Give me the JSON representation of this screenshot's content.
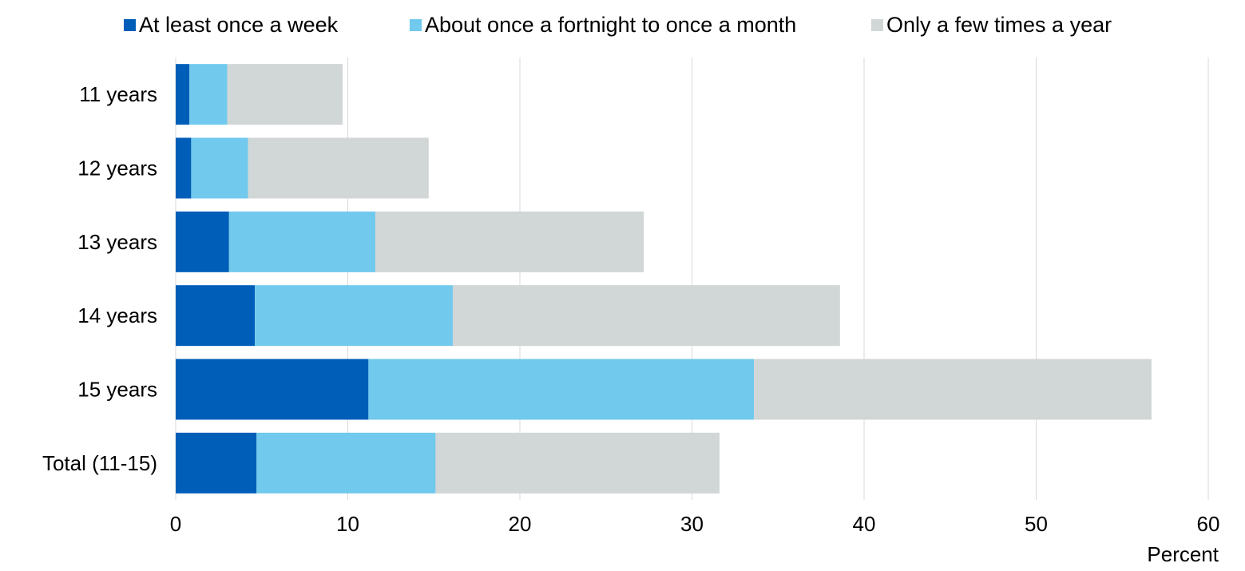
{
  "chart_data": {
    "type": "bar",
    "orientation": "horizontal",
    "stacked": true,
    "categories": [
      "11 years",
      "12 years",
      "13 years",
      "14 years",
      "15 years",
      "Total (11-15)"
    ],
    "series": [
      {
        "name": "At least once a week",
        "color": "#005EB8",
        "values": [
          0.8,
          0.9,
          3.1,
          4.6,
          11.2,
          4.7
        ]
      },
      {
        "name": "About once a fortnight to once a month",
        "color": "#71C9EE",
        "values": [
          2.2,
          3.3,
          8.5,
          11.5,
          22.4,
          10.4
        ]
      },
      {
        "name": "Only a few times a year",
        "color": "#D1D6D6",
        "values": [
          6.7,
          10.5,
          15.6,
          22.5,
          23.1,
          16.5
        ]
      }
    ],
    "xlim": [
      0,
      60
    ],
    "xticks": [
      "0",
      "10",
      "20",
      "30",
      "40",
      "50",
      "60"
    ],
    "xlabel": "Percent",
    "ylabel": "",
    "title": "",
    "grid": "vertical",
    "legend": "top"
  }
}
